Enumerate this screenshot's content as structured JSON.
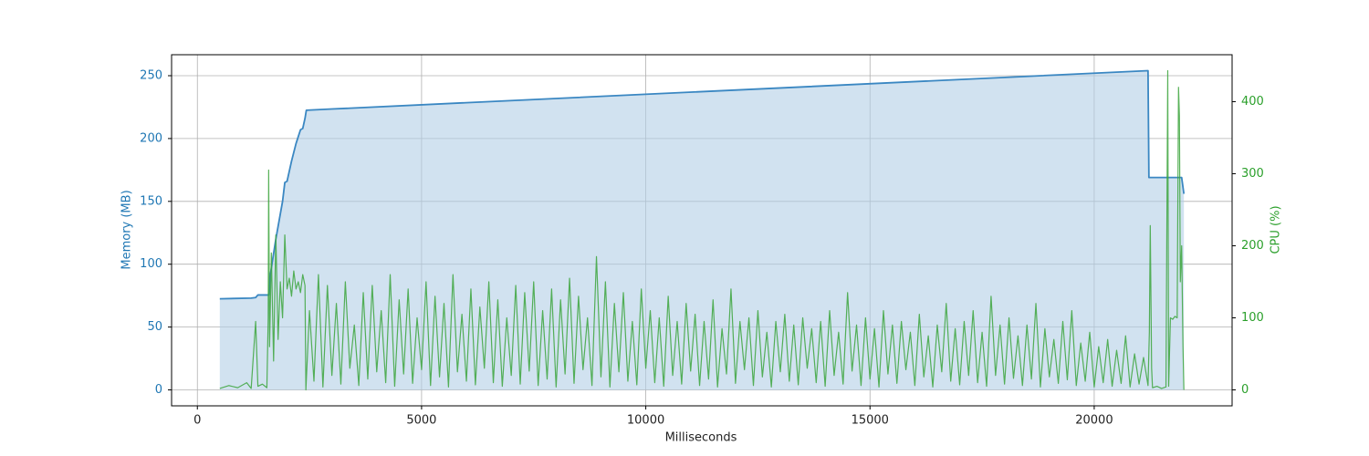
{
  "chart_data": {
    "type": "line",
    "xlabel": "Milliseconds",
    "ylabel": "Memory (MB)",
    "y2label": "CPU (%)",
    "xlim": [
      -575,
      23075
    ],
    "ylim": [
      -12.7,
      266.7
    ],
    "y2lim": [
      -22.15,
      465.15
    ],
    "xticks": [
      0,
      5000,
      10000,
      15000,
      20000
    ],
    "yticks": [
      0,
      50,
      100,
      150,
      200,
      250
    ],
    "y2ticks": [
      0,
      100,
      200,
      300,
      400
    ],
    "grid": true,
    "series": [
      {
        "color": "#3a87c2",
        "fill": "#b3cfe6",
        "axis": "y",
        "x": [
          500,
          1200,
          1300,
          1350,
          1600,
          1620,
          1750,
          1900,
          1950,
          2000,
          2100,
          2200,
          2300,
          2350,
          2400,
          2430,
          3000,
          21200,
          21220,
          21950,
          22000
        ],
        "values": [
          72.5,
          73,
          73.5,
          75.5,
          75.5,
          90,
          120,
          150,
          165,
          166,
          182,
          196,
          207,
          208,
          216,
          222.5,
          223.5,
          254,
          169,
          169,
          156
        ]
      },
      {
        "color": "#3ca53c",
        "axis": "y2",
        "x": [
          500,
          700,
          900,
          1100,
          1200,
          1300,
          1350,
          1450,
          1550,
          1580,
          1590,
          1610,
          1650,
          1700,
          1750,
          1800,
          1850,
          1900,
          1950,
          2000,
          2050,
          2100,
          2150,
          2200,
          2250,
          2300,
          2350,
          2400,
          2420,
          2500,
          2600,
          2700,
          2800,
          2900,
          3000,
          3100,
          3200,
          3300,
          3400,
          3500,
          3600,
          3700,
          3800,
          3900,
          4000,
          4100,
          4200,
          4300,
          4400,
          4500,
          4600,
          4700,
          4800,
          4900,
          5000,
          5100,
          5200,
          5300,
          5400,
          5500,
          5600,
          5700,
          5800,
          5900,
          6000,
          6100,
          6200,
          6300,
          6400,
          6500,
          6600,
          6700,
          6800,
          6900,
          7000,
          7100,
          7200,
          7300,
          7400,
          7500,
          7600,
          7700,
          7800,
          7900,
          8000,
          8100,
          8200,
          8300,
          8400,
          8500,
          8600,
          8700,
          8800,
          8900,
          9000,
          9100,
          9200,
          9300,
          9400,
          9500,
          9600,
          9700,
          9800,
          9900,
          10000,
          10100,
          10200,
          10300,
          10400,
          10500,
          10600,
          10700,
          10800,
          10900,
          11000,
          11100,
          11200,
          11300,
          11400,
          11500,
          11600,
          11700,
          11800,
          11900,
          12000,
          12100,
          12200,
          12300,
          12400,
          12500,
          12600,
          12700,
          12800,
          12900,
          13000,
          13100,
          13200,
          13300,
          13400,
          13500,
          13600,
          13700,
          13800,
          13900,
          14000,
          14100,
          14200,
          14300,
          14400,
          14500,
          14600,
          14700,
          14800,
          14900,
          15000,
          15100,
          15200,
          15300,
          15400,
          15500,
          15600,
          15700,
          15800,
          15900,
          16000,
          16100,
          16200,
          16300,
          16400,
          16500,
          16600,
          16700,
          16800,
          16900,
          17000,
          17100,
          17200,
          17300,
          17400,
          17500,
          17600,
          17700,
          17800,
          17900,
          18000,
          18100,
          18200,
          18300,
          18400,
          18500,
          18600,
          18700,
          18800,
          18900,
          19000,
          19100,
          19200,
          19300,
          19400,
          19500,
          19600,
          19700,
          19800,
          19900,
          20000,
          20100,
          20200,
          20300,
          20400,
          20500,
          20600,
          20700,
          20800,
          20900,
          21000,
          21100,
          21200,
          21230,
          21250,
          21280,
          21300,
          21400,
          21500,
          21600,
          21640,
          21660,
          21700,
          21750,
          21800,
          21850,
          21880,
          21900,
          21920,
          21950,
          21980,
          22000
        ],
        "values": [
          2,
          6,
          3,
          10,
          2,
          95,
          5,
          8,
          3,
          100,
          305,
          60,
          190,
          40,
          215,
          70,
          150,
          100,
          215,
          140,
          155,
          130,
          165,
          140,
          150,
          135,
          160,
          145,
          0,
          110,
          12,
          160,
          4,
          145,
          20,
          120,
          8,
          150,
          30,
          90,
          6,
          135,
          15,
          145,
          25,
          110,
          10,
          160,
          5,
          125,
          22,
          140,
          9,
          100,
          28,
          150,
          6,
          130,
          18,
          120,
          4,
          160,
          25,
          105,
          12,
          140,
          7,
          115,
          30,
          150,
          10,
          125,
          5,
          100,
          20,
          145,
          8,
          135,
          26,
          150,
          6,
          110,
          15,
          140,
          4,
          125,
          22,
          155,
          9,
          130,
          28,
          100,
          6,
          185,
          18,
          150,
          4,
          120,
          25,
          135,
          12,
          95,
          7,
          140,
          30,
          110,
          10,
          100,
          5,
          130,
          20,
          95,
          8,
          120,
          26,
          105,
          6,
          95,
          15,
          125,
          4,
          85,
          22,
          140,
          9,
          95,
          28,
          100,
          6,
          110,
          18,
          80,
          4,
          95,
          25,
          105,
          12,
          90,
          7,
          100,
          30,
          85,
          10,
          95,
          5,
          110,
          20,
          80,
          8,
          135,
          26,
          90,
          6,
          100,
          15,
          85,
          4,
          110,
          22,
          90,
          9,
          95,
          28,
          80,
          6,
          105,
          18,
          75,
          4,
          90,
          25,
          120,
          12,
          85,
          7,
          95,
          20,
          110,
          10,
          80,
          5,
          130,
          20,
          90,
          8,
          100,
          16,
          75,
          6,
          90,
          15,
          120,
          4,
          85,
          18,
          70,
          9,
          95,
          14,
          110,
          6,
          65,
          12,
          80,
          4,
          60,
          10,
          70,
          5,
          55,
          9,
          75,
          4,
          50,
          8,
          45,
          6,
          80,
          228,
          30,
          3,
          5,
          2,
          4,
          443,
          5,
          100,
          98,
          102,
          100,
          420,
          380,
          150,
          200,
          60,
          0
        ]
      }
    ]
  }
}
